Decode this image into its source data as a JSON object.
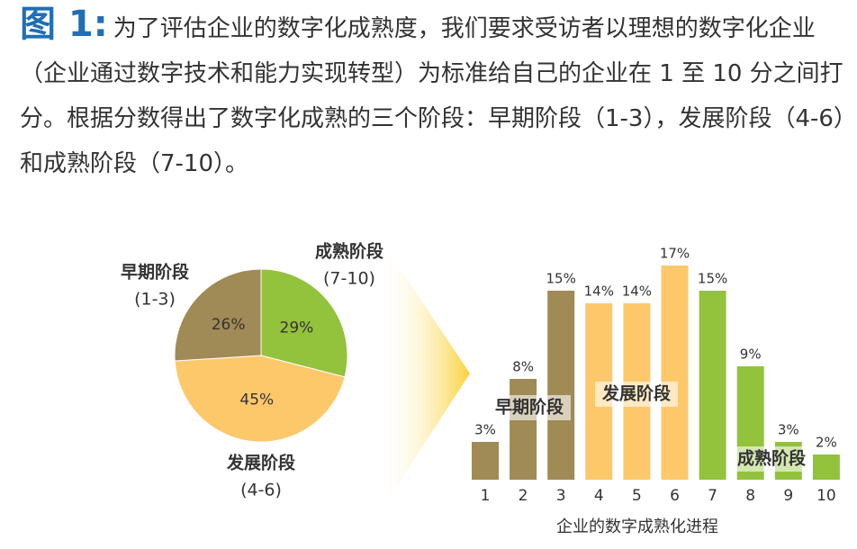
{
  "caption": {
    "label": "图 1:",
    "text": "为了评估企业的数字化成熟度，我们要求受访者以理想的数字化企业（企业通过数字技术和能力实现转型）为标准给自己的企业在 1 至 10 分之间打分。根据分数得出了数字化成熟的三个阶段：早期阶段（1-3），发展阶段（4-6）和成熟阶段（7-10）。"
  },
  "chart_data": [
    {
      "type": "pie",
      "categories": [
        "成熟阶段",
        "发展阶段",
        "早期阶段"
      ],
      "ranges": [
        "(7-10)",
        "(4-6)",
        "(1-3)"
      ],
      "values": [
        29,
        45,
        26
      ],
      "value_labels": [
        "29%",
        "45%",
        "26%"
      ],
      "colors": [
        "#93c23c",
        "#fdc86a",
        "#a08a55"
      ]
    },
    {
      "type": "bar",
      "categories": [
        "1",
        "2",
        "3",
        "4",
        "5",
        "6",
        "7",
        "8",
        "9",
        "10"
      ],
      "values": [
        3,
        8,
        15,
        14,
        14,
        17,
        15,
        9,
        3,
        2
      ],
      "value_labels": [
        "3%",
        "8%",
        "15%",
        "14%",
        "14%",
        "17%",
        "15%",
        "9%",
        "3%",
        "2%"
      ],
      "colors": [
        "#a08a55",
        "#a08a55",
        "#a08a55",
        "#fdc86a",
        "#fdc86a",
        "#fdc86a",
        "#93c23c",
        "#93c23c",
        "#93c23c",
        "#93c23c"
      ],
      "xlabel": "企业的数字成熟化进程",
      "annotations": [
        "早期阶段",
        "发展阶段",
        "成熟阶段"
      ]
    }
  ]
}
